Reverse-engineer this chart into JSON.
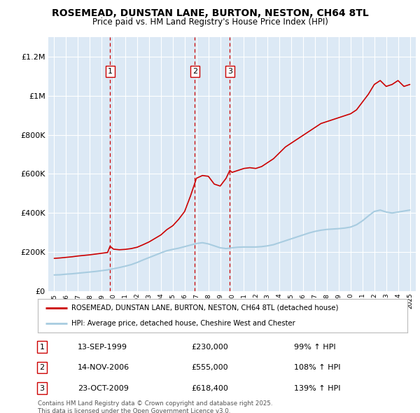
{
  "title": "ROSEMEAD, DUNSTAN LANE, BURTON, NESTON, CH64 8TL",
  "subtitle": "Price paid vs. HM Land Registry's House Price Index (HPI)",
  "plot_bg_color": "#dce9f5",
  "legend_text1": "ROSEMEAD, DUNSTAN LANE, BURTON, NESTON, CH64 8TL (detached house)",
  "legend_text2": "HPI: Average price, detached house, Cheshire West and Chester",
  "footer": "Contains HM Land Registry data © Crown copyright and database right 2025.\nThis data is licensed under the Open Government Licence v3.0.",
  "transactions": [
    {
      "num": 1,
      "date": "13-SEP-1999",
      "price": 230000,
      "hpi_pct": "99%",
      "year": 1999.71
    },
    {
      "num": 2,
      "date": "14-NOV-2006",
      "price": 555000,
      "hpi_pct": "108%",
      "year": 2006.87
    },
    {
      "num": 3,
      "date": "23-OCT-2009",
      "price": 618400,
      "hpi_pct": "139%",
      "year": 2009.81
    }
  ],
  "hpi_line_color": "#a8cce0",
  "price_line_color": "#cc0000",
  "vline_color": "#cc0000",
  "ylim": [
    0,
    1300000
  ],
  "yticks": [
    0,
    200000,
    400000,
    600000,
    800000,
    1000000,
    1200000
  ],
  "xlim": [
    1994.5,
    2025.5
  ],
  "hpi_data": {
    "years": [
      1995.0,
      1995.5,
      1996.0,
      1996.5,
      1997.0,
      1997.5,
      1998.0,
      1998.5,
      1999.0,
      1999.5,
      2000.0,
      2000.5,
      2001.0,
      2001.5,
      2002.0,
      2002.5,
      2003.0,
      2003.5,
      2004.0,
      2004.5,
      2005.0,
      2005.5,
      2006.0,
      2006.5,
      2007.0,
      2007.5,
      2008.0,
      2008.5,
      2009.0,
      2009.5,
      2010.0,
      2010.5,
      2011.0,
      2011.5,
      2012.0,
      2012.5,
      2013.0,
      2013.5,
      2014.0,
      2014.5,
      2015.0,
      2015.5,
      2016.0,
      2016.5,
      2017.0,
      2017.5,
      2018.0,
      2018.5,
      2019.0,
      2019.5,
      2020.0,
      2020.5,
      2021.0,
      2021.5,
      2022.0,
      2022.5,
      2023.0,
      2023.5,
      2024.0,
      2024.5,
      2025.0
    ],
    "values": [
      83000,
      84000,
      87000,
      89000,
      92000,
      95000,
      98000,
      101000,
      105000,
      109000,
      115000,
      121000,
      128000,
      136000,
      147000,
      160000,
      172000,
      184000,
      196000,
      207000,
      214000,
      220000,
      228000,
      236000,
      244000,
      248000,
      242000,
      232000,
      222000,
      218000,
      222000,
      225000,
      226000,
      226000,
      226000,
      228000,
      232000,
      238000,
      248000,
      258000,
      268000,
      278000,
      288000,
      298000,
      306000,
      312000,
      316000,
      318000,
      320000,
      323000,
      328000,
      340000,
      360000,
      385000,
      408000,
      415000,
      405000,
      400000,
      405000,
      410000,
      415000
    ]
  },
  "price_hpi_data": {
    "years": [
      1995.0,
      1995.5,
      1996.0,
      1996.5,
      1997.0,
      1997.5,
      1998.0,
      1998.5,
      1999.0,
      1999.5,
      1999.71,
      2000.0,
      2000.5,
      2001.0,
      2001.5,
      2002.0,
      2002.5,
      2003.0,
      2003.5,
      2004.0,
      2004.5,
      2005.0,
      2005.5,
      2006.0,
      2006.5,
      2006.87,
      2007.0,
      2007.5,
      2008.0,
      2008.5,
      2009.0,
      2009.5,
      2009.81,
      2010.0,
      2010.5,
      2011.0,
      2011.5,
      2012.0,
      2012.5,
      2013.0,
      2013.5,
      2014.0,
      2014.5,
      2015.0,
      2015.5,
      2016.0,
      2016.5,
      2017.0,
      2017.5,
      2018.0,
      2018.5,
      2019.0,
      2019.5,
      2020.0,
      2020.5,
      2021.0,
      2021.5,
      2022.0,
      2022.5,
      2023.0,
      2023.5,
      2024.0,
      2024.5,
      2025.0
    ],
    "values": [
      168000,
      170000,
      173000,
      176000,
      180000,
      183000,
      186000,
      190000,
      194000,
      198000,
      230000,
      215000,
      212000,
      214000,
      218000,
      225000,
      238000,
      252000,
      270000,
      288000,
      315000,
      335000,
      368000,
      408000,
      488000,
      555000,
      578000,
      592000,
      588000,
      548000,
      538000,
      578000,
      618400,
      608000,
      618000,
      628000,
      632000,
      628000,
      638000,
      658000,
      678000,
      708000,
      738000,
      758000,
      778000,
      798000,
      818000,
      838000,
      858000,
      868000,
      878000,
      888000,
      898000,
      908000,
      928000,
      968000,
      1008000,
      1058000,
      1078000,
      1048000,
      1058000,
      1078000,
      1048000,
      1058000
    ]
  }
}
